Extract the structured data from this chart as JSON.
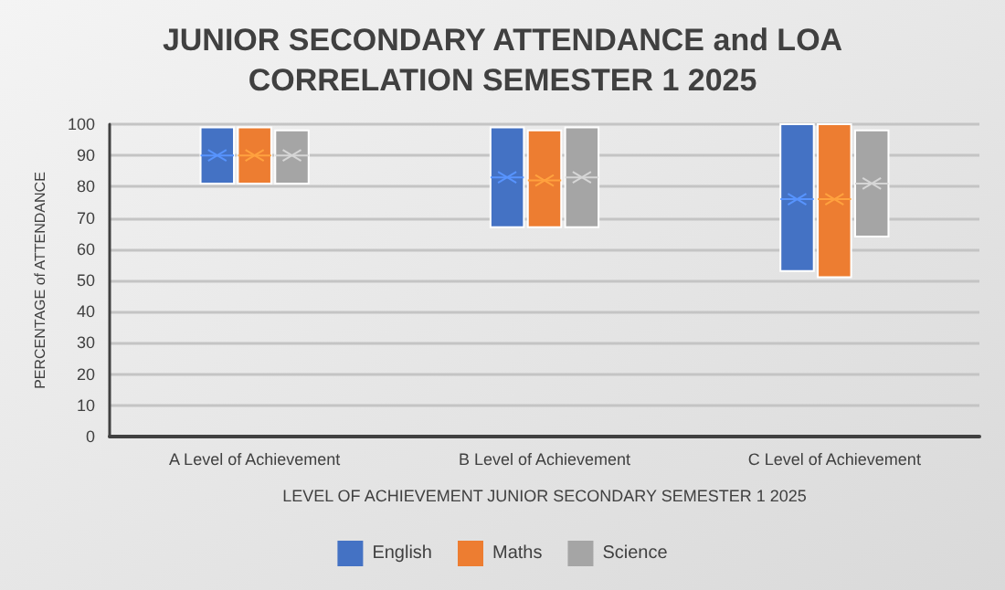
{
  "chart_data": {
    "type": "box",
    "title": "JUNIOR SECONDARY ATTENDANCE and LOA\nCORRELATION SEMESTER 1 2025",
    "xlabel": "LEVEL OF ACHIEVEMENT JUNIOR SECONDARY SEMESTER 1 2025",
    "ylabel": "PERCENTAGE of ATTENDANCE",
    "categories": [
      "A Level of Achievement",
      "B Level of Achievement",
      "C Level of Achievement"
    ],
    "ylim": [
      0,
      100
    ],
    "yticks": [
      0,
      10,
      20,
      30,
      40,
      50,
      60,
      70,
      80,
      90,
      100
    ],
    "grid": "y",
    "legend": "bottom",
    "series": [
      {
        "name": "English",
        "color": "#4472c4",
        "boxes": [
          {
            "low": 81,
            "q1": 81,
            "median": 90,
            "q3": 99,
            "high": 99,
            "mean": 90
          },
          {
            "low": 67,
            "q1": 67,
            "median": 83,
            "q3": 99,
            "high": 99,
            "mean": 83
          },
          {
            "low": 53,
            "q1": 53,
            "median": 76,
            "q3": 100,
            "high": 100,
            "mean": 76
          }
        ]
      },
      {
        "name": "Maths",
        "color": "#ed7d31",
        "boxes": [
          {
            "low": 81,
            "q1": 81,
            "median": 90,
            "q3": 99,
            "high": 99,
            "mean": 90
          },
          {
            "low": 67,
            "q1": 67,
            "median": 82,
            "q3": 98,
            "high": 98,
            "mean": 82
          },
          {
            "low": 51,
            "q1": 51,
            "median": 76,
            "q3": 100,
            "high": 100,
            "mean": 76
          }
        ]
      },
      {
        "name": "Science",
        "color": "#a5a5a5",
        "boxes": [
          {
            "low": 81,
            "q1": 81,
            "median": 90,
            "q3": 98,
            "high": 98,
            "mean": 90
          },
          {
            "low": 67,
            "q1": 67,
            "median": 83,
            "q3": 99,
            "high": 99,
            "mean": 83
          },
          {
            "low": 64,
            "q1": 64,
            "median": 81,
            "q3": 98,
            "high": 98,
            "mean": 81
          }
        ]
      }
    ]
  }
}
